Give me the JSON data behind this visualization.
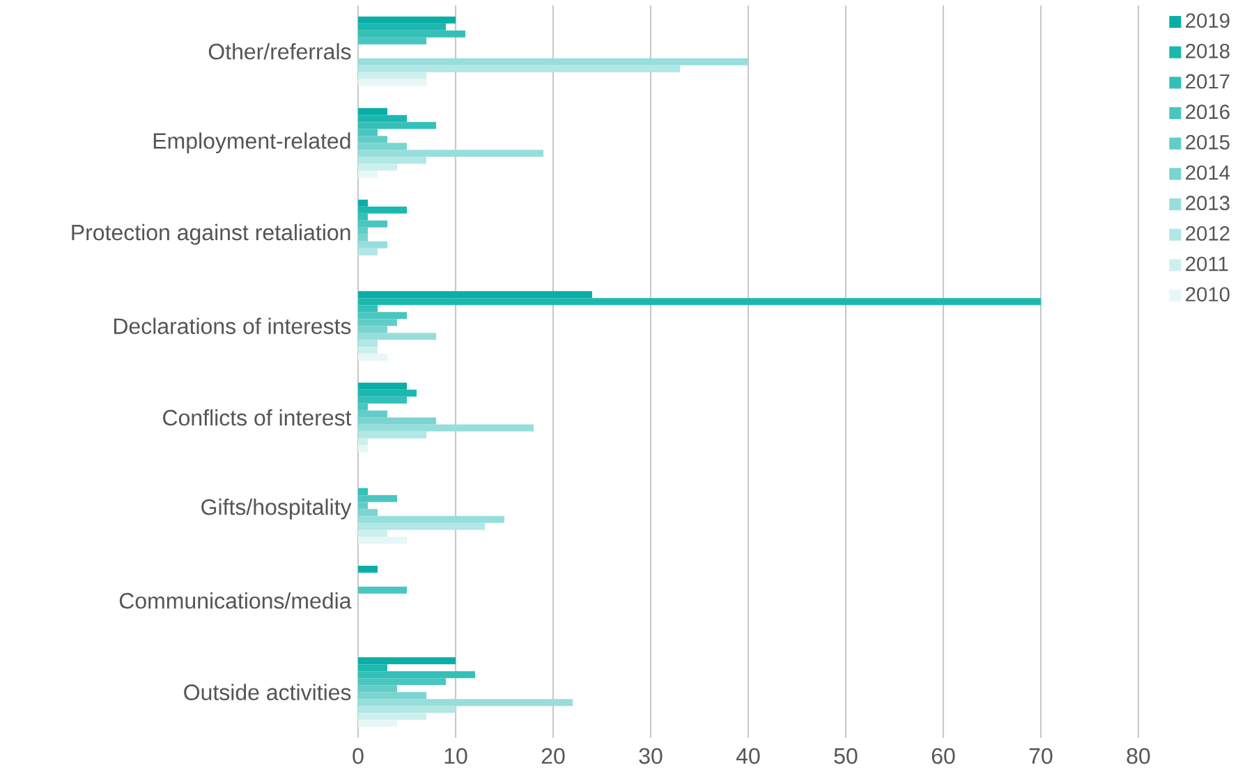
{
  "chart_data": {
    "type": "bar",
    "orientation": "horizontal",
    "categories": [
      "Other/referrals",
      "Employment-related",
      "Protection against retaliation",
      "Declarations of interests",
      "Conflicts of interest",
      "Gifts/hospitality",
      "Communications/media",
      "Outside activities"
    ],
    "series": [
      {
        "name": "2019",
        "color": "#0aaea6",
        "values": [
          10,
          3,
          1,
          24,
          5,
          null,
          2,
          10
        ]
      },
      {
        "name": "2018",
        "color": "#1bb8b0",
        "values": [
          9,
          5,
          5,
          70,
          6,
          null,
          null,
          3
        ]
      },
      {
        "name": "2017",
        "color": "#33c0b9",
        "values": [
          11,
          8,
          1,
          2,
          5,
          1,
          null,
          12
        ]
      },
      {
        "name": "2016",
        "color": "#4ac6c0",
        "values": [
          7,
          2,
          3,
          5,
          1,
          4,
          5,
          9
        ]
      },
      {
        "name": "2015",
        "color": "#62cdc8",
        "values": [
          null,
          3,
          1,
          4,
          3,
          1,
          null,
          4
        ]
      },
      {
        "name": "2014",
        "color": "#7ad4d0",
        "values": [
          null,
          5,
          1,
          3,
          8,
          2,
          null,
          7
        ]
      },
      {
        "name": "2013",
        "color": "#96dedb",
        "values": [
          40,
          19,
          3,
          8,
          18,
          15,
          null,
          22
        ]
      },
      {
        "name": "2012",
        "color": "#b1e7e5",
        "values": [
          33,
          7,
          2,
          2,
          7,
          13,
          null,
          10
        ]
      },
      {
        "name": "2011",
        "color": "#cdf0ee",
        "values": [
          7,
          4,
          null,
          2,
          1,
          3,
          null,
          7
        ]
      },
      {
        "name": "2010",
        "color": "#e6f7f6",
        "values": [
          7,
          2,
          null,
          3,
          1,
          5,
          null,
          4
        ]
      }
    ],
    "xlim": [
      0,
      80
    ],
    "xticks": [
      0,
      10,
      20,
      30,
      40,
      50,
      60,
      70,
      80
    ],
    "grid": "x",
    "legend": "top right"
  }
}
